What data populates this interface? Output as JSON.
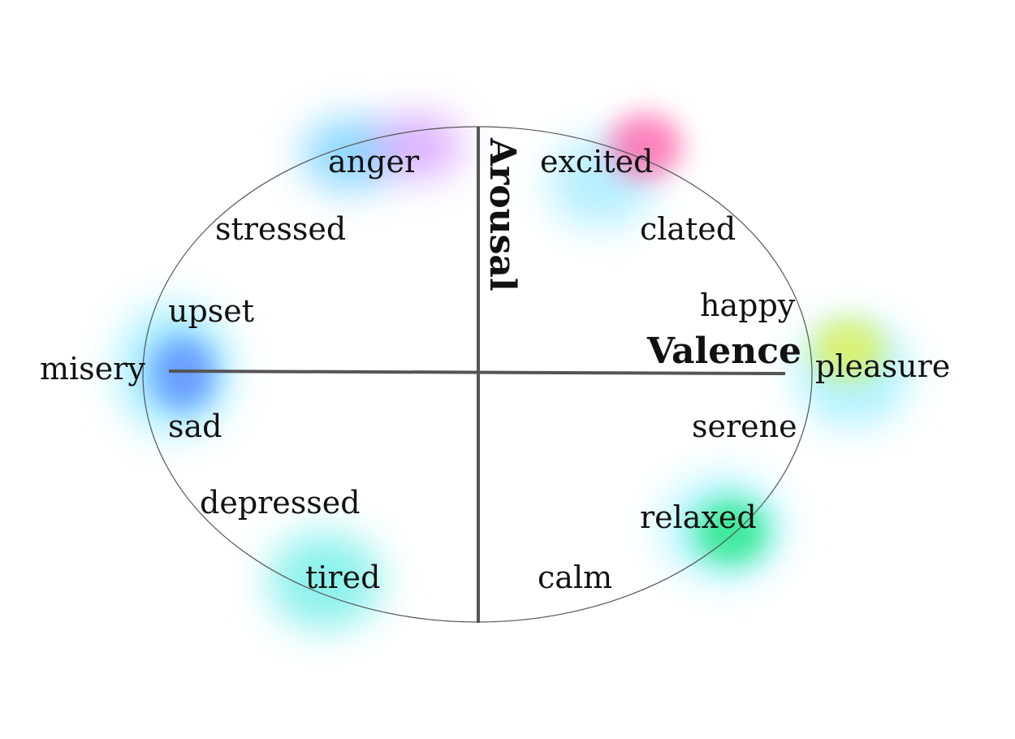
{
  "diagram": {
    "axes": {
      "vertical": "Arousal",
      "horizontal": "Valence"
    },
    "emotions": {
      "anger": "anger",
      "excited": "excited",
      "stressed": "stressed",
      "clated": "clated",
      "happy": "happy",
      "upset": "upset",
      "misery": "misery",
      "pleasure": "pleasure",
      "sad": "sad",
      "serene": "serene",
      "depressed": "depressed",
      "relaxed": "relaxed",
      "tired": "tired",
      "calm": "calm"
    },
    "colors": {
      "anger_glow": [
        "#4fc3ff",
        "#c77dff"
      ],
      "excited_glow": [
        "#ff4fa0",
        "#5fdcff"
      ],
      "misery_glow": [
        "#4f7dff",
        "#4fe0ff"
      ],
      "pleasure_glow": [
        "#e6f03c",
        "#4fe3ff"
      ],
      "relaxed_glow": [
        "#17e67a",
        "#5fe8ff"
      ],
      "tired_glow": [
        "#3fe8e0",
        "#5fdcff"
      ]
    }
  }
}
